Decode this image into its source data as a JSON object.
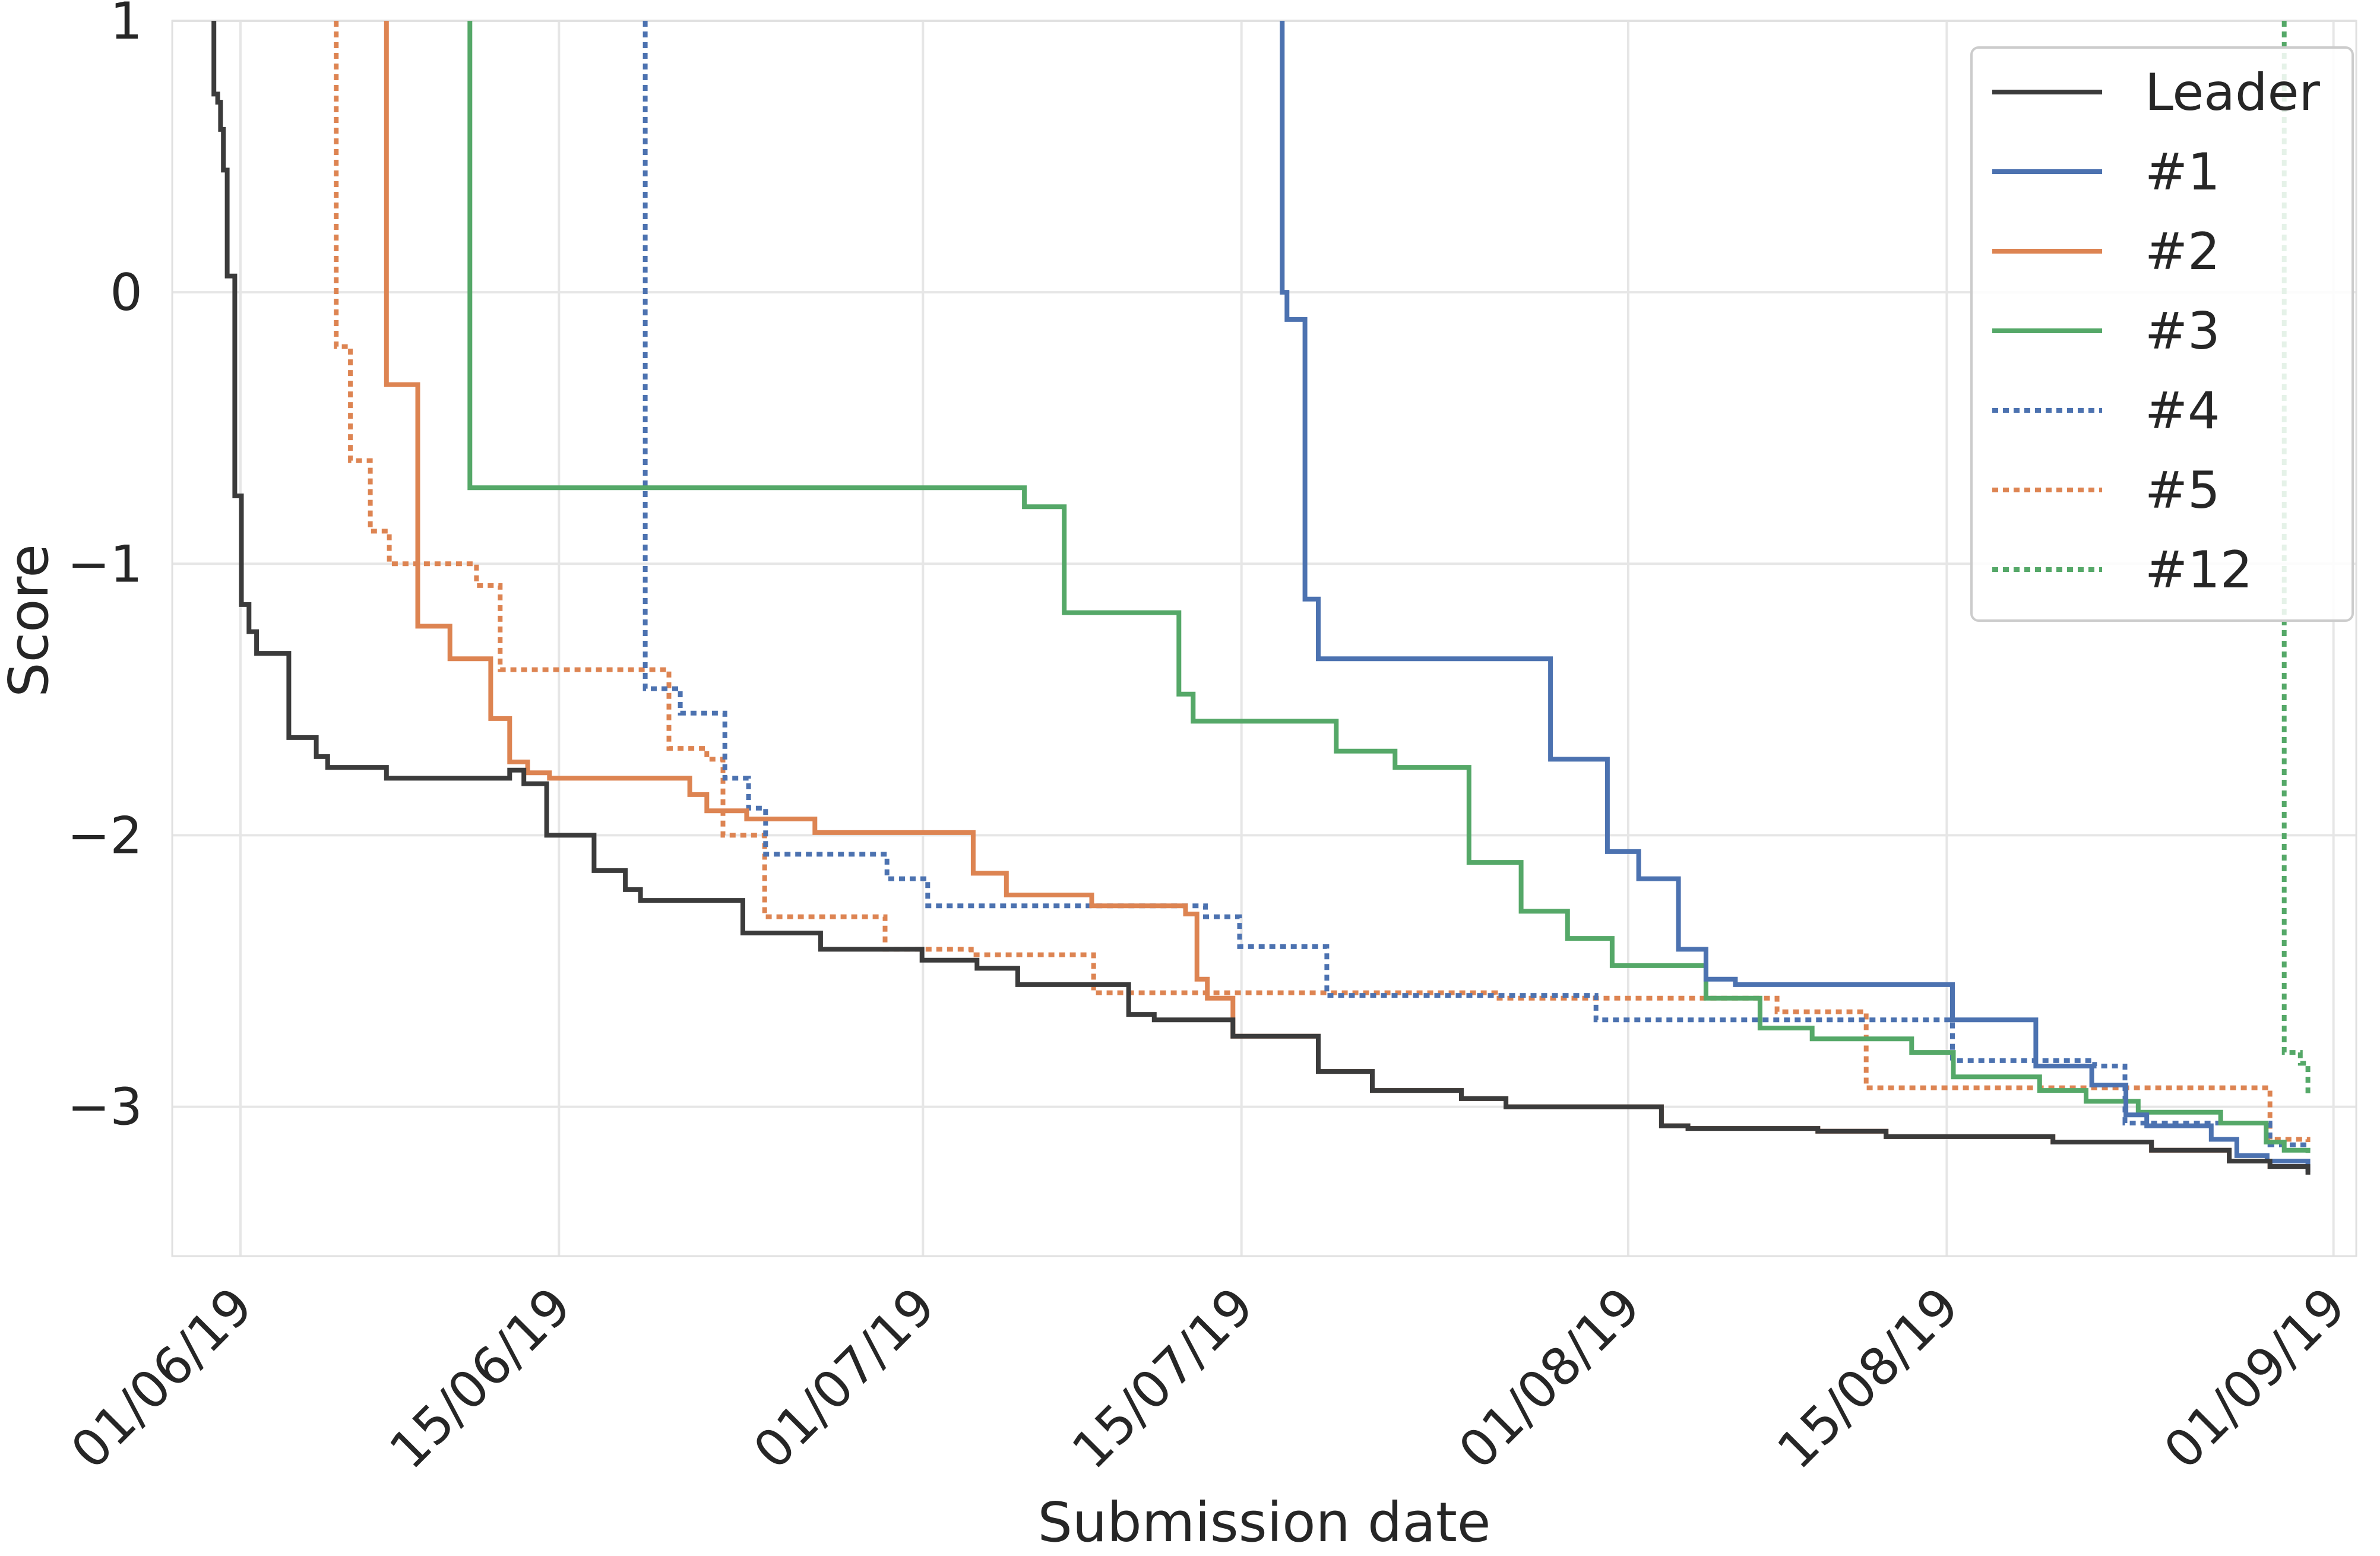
{
  "chart_data": {
    "type": "line",
    "xlabel": "Submission date",
    "ylabel": "Score",
    "ylim": [
      -3.55,
      1.0
    ],
    "xlim": [
      "2019-05-29",
      "2019-09-02"
    ],
    "grid": true,
    "legend_position": "top-right",
    "x_ticks": [
      {
        "date": "2019-06-01",
        "label": "01/06/19"
      },
      {
        "date": "2019-06-15",
        "label": "15/06/19"
      },
      {
        "date": "2019-07-01",
        "label": "01/07/19"
      },
      {
        "date": "2019-07-15",
        "label": "15/07/19"
      },
      {
        "date": "2019-08-01",
        "label": "01/08/19"
      },
      {
        "date": "2019-08-15",
        "label": "15/08/19"
      },
      {
        "date": "2019-09-01",
        "label": "01/09/19"
      }
    ],
    "y_ticks": [
      {
        "value": 1,
        "label": "1"
      },
      {
        "value": 0,
        "label": "0"
      },
      {
        "value": -1,
        "label": "−1"
      },
      {
        "value": -2,
        "label": "−2"
      },
      {
        "value": -3,
        "label": "−3"
      }
    ],
    "series": [
      {
        "name": "Leader",
        "color": "#3b3b3b",
        "style": "solid",
        "points": [
          [
            "2019-05-30 20:00",
            1.0
          ],
          [
            "2019-05-30 20:00",
            0.73
          ],
          [
            "2019-05-31 00:00",
            0.7
          ],
          [
            "2019-05-31 03:00",
            0.6
          ],
          [
            "2019-05-31 06:00",
            0.45
          ],
          [
            "2019-05-31 10:00",
            0.06
          ],
          [
            "2019-05-31 18:00",
            -0.75
          ],
          [
            "2019-06-01 01:00",
            -1.15
          ],
          [
            "2019-06-01 09:00",
            -1.25
          ],
          [
            "2019-06-01 17:00",
            -1.33
          ],
          [
            "2019-06-03 03:00",
            -1.64
          ],
          [
            "2019-06-04 08:00",
            -1.71
          ],
          [
            "2019-06-04 20:00",
            -1.75
          ],
          [
            "2019-06-07 10:00",
            -1.79
          ],
          [
            "2019-06-12 20:00",
            -1.76
          ],
          [
            "2019-06-13 11:00",
            -1.81
          ],
          [
            "2019-06-14 11:00",
            -2.0
          ],
          [
            "2019-06-16 13:00",
            -2.13
          ],
          [
            "2019-06-17 22:00",
            -2.2
          ],
          [
            "2019-06-18 14:00",
            -2.24
          ],
          [
            "2019-06-23 02:00",
            -2.36
          ],
          [
            "2019-06-26 12:00",
            -2.42
          ],
          [
            "2019-06-30 23:00",
            -2.46
          ],
          [
            "2019-07-03 09:00",
            -2.49
          ],
          [
            "2019-07-05 04:00",
            -2.55
          ],
          [
            "2019-07-10 01:00",
            -2.66
          ],
          [
            "2019-07-11 04:00",
            -2.68
          ],
          [
            "2019-07-14 15:00",
            -2.74
          ],
          [
            "2019-07-18 09:00",
            -2.87
          ],
          [
            "2019-07-20 18:00",
            -2.94
          ],
          [
            "2019-07-24 16:00",
            -2.97
          ],
          [
            "2019-07-26 15:00",
            -3.0
          ],
          [
            "2019-08-02 11:00",
            -3.07
          ],
          [
            "2019-08-03 15:00",
            -3.08
          ],
          [
            "2019-08-09 08:00",
            -3.09
          ],
          [
            "2019-08-12 08:00",
            -3.11
          ],
          [
            "2019-08-19 16:00",
            -3.13
          ],
          [
            "2019-08-24 00:00",
            -3.16
          ],
          [
            "2019-08-27 10:00",
            -3.2
          ],
          [
            "2019-08-29 05:00",
            -3.22
          ],
          [
            "2019-08-30 21:00",
            -3.25
          ]
        ]
      },
      {
        "name": "#1",
        "color": "#4c72b0",
        "style": "solid",
        "points": [
          [
            "2019-07-16 19:00",
            1.0
          ],
          [
            "2019-07-16 19:00",
            0.0
          ],
          [
            "2019-07-17 00:00",
            -0.1
          ],
          [
            "2019-07-17 19:00",
            -1.13
          ],
          [
            "2019-07-18 09:00",
            -1.35
          ],
          [
            "2019-07-28 14:00",
            -1.72
          ],
          [
            "2019-07-31 02:00",
            -2.06
          ],
          [
            "2019-08-01 11:00",
            -2.16
          ],
          [
            "2019-08-03 05:00",
            -2.42
          ],
          [
            "2019-08-04 10:00",
            -2.53
          ],
          [
            "2019-08-05 17:00",
            -2.55
          ],
          [
            "2019-08-15 06:00",
            -2.68
          ],
          [
            "2019-08-18 22:00",
            -2.85
          ],
          [
            "2019-08-21 09:00",
            -2.92
          ],
          [
            "2019-08-22 21:00",
            -3.03
          ],
          [
            "2019-08-23 19:00",
            -3.07
          ],
          [
            "2019-08-26 15:00",
            -3.12
          ],
          [
            "2019-08-27 18:00",
            -3.18
          ],
          [
            "2019-08-29 02:00",
            -3.2
          ],
          [
            "2019-08-30 21:00",
            -3.24
          ]
        ]
      },
      {
        "name": "#2",
        "color": "#dd8452",
        "style": "solid",
        "points": [
          [
            "2019-06-07 10:00",
            1.0
          ],
          [
            "2019-06-07 10:00",
            -0.34
          ],
          [
            "2019-06-08 19:00",
            -1.23
          ],
          [
            "2019-06-10 05:00",
            -1.35
          ],
          [
            "2019-06-12 00:00",
            -1.57
          ],
          [
            "2019-06-12 20:00",
            -1.73
          ],
          [
            "2019-06-13 15:00",
            -1.77
          ],
          [
            "2019-06-14 14:00",
            -1.79
          ],
          [
            "2019-06-20 18:00",
            -1.85
          ],
          [
            "2019-06-21 12:00",
            -1.91
          ],
          [
            "2019-06-23 06:00",
            -1.94
          ],
          [
            "2019-06-26 06:00",
            -1.99
          ],
          [
            "2019-07-03 05:00",
            -2.14
          ],
          [
            "2019-07-04 16:00",
            -2.22
          ],
          [
            "2019-07-08 10:00",
            -2.26
          ],
          [
            "2019-07-12 13:00",
            -2.29
          ],
          [
            "2019-07-13 01:00",
            -2.53
          ],
          [
            "2019-07-13 12:00",
            -2.6
          ],
          [
            "2019-07-14 15:00",
            -2.74
          ],
          [
            "2019-07-18 09:00",
            -2.87
          ],
          [
            "2019-07-20 18:00",
            -2.94
          ],
          [
            "2019-07-24 16:00",
            -2.97
          ],
          [
            "2019-07-26 15:00",
            -3.0
          ],
          [
            "2019-08-02 11:00",
            -3.07
          ],
          [
            "2019-08-03 15:00",
            -3.08
          ],
          [
            "2019-08-09 08:00",
            -3.09
          ],
          [
            "2019-08-12 08:00",
            -3.11
          ],
          [
            "2019-08-19 16:00",
            -3.13
          ],
          [
            "2019-08-24 00:00",
            -3.16
          ],
          [
            "2019-08-27 10:00",
            -3.2
          ],
          [
            "2019-08-29 05:00",
            -3.22
          ],
          [
            "2019-08-30 21:00",
            -3.22
          ]
        ]
      },
      {
        "name": "#3",
        "color": "#55a868",
        "style": "solid",
        "points": [
          [
            "2019-06-11 02:00",
            1.0
          ],
          [
            "2019-06-11 02:00",
            -0.72
          ],
          [
            "2019-07-05 11:00",
            -0.79
          ],
          [
            "2019-07-07 05:00",
            -1.18
          ],
          [
            "2019-07-12 06:00",
            -1.48
          ],
          [
            "2019-07-12 21:00",
            -1.58
          ],
          [
            "2019-07-19 04:00",
            -1.69
          ],
          [
            "2019-07-21 18:00",
            -1.75
          ],
          [
            "2019-07-25 00:00",
            -2.1
          ],
          [
            "2019-07-27 07:00",
            -2.28
          ],
          [
            "2019-07-29 08:00",
            -2.38
          ],
          [
            "2019-07-31 07:00",
            -2.48
          ],
          [
            "2019-08-04 10:00",
            -2.6
          ],
          [
            "2019-08-06 19:00",
            -2.71
          ],
          [
            "2019-08-09 02:00",
            -2.75
          ],
          [
            "2019-08-13 11:00",
            -2.8
          ],
          [
            "2019-08-15 07:00",
            -2.89
          ],
          [
            "2019-08-19 02:00",
            -2.94
          ],
          [
            "2019-08-21 03:00",
            -2.98
          ],
          [
            "2019-08-23 10:00",
            -3.02
          ],
          [
            "2019-08-27 01:00",
            -3.06
          ],
          [
            "2019-08-29 01:00",
            -3.13
          ],
          [
            "2019-08-29 20:00",
            -3.16
          ],
          [
            "2019-08-30 21:00",
            -3.17
          ]
        ]
      },
      {
        "name": "#4",
        "color": "#4c72b0",
        "style": "dotted",
        "points": [
          [
            "2019-06-18 19:00",
            1.0
          ],
          [
            "2019-06-18 19:00",
            -1.46
          ],
          [
            "2019-06-20 08:00",
            -1.55
          ],
          [
            "2019-06-22 07:00",
            -1.79
          ],
          [
            "2019-06-23 08:00",
            -1.9
          ],
          [
            "2019-06-24 02:00",
            -2.07
          ],
          [
            "2019-06-29 10:00",
            -2.16
          ],
          [
            "2019-07-01 05:00",
            -2.26
          ],
          [
            "2019-07-13 10:00",
            -2.3
          ],
          [
            "2019-07-14 22:00",
            -2.41
          ],
          [
            "2019-07-18 18:00",
            -2.59
          ],
          [
            "2019-07-30 14:00",
            -2.68
          ],
          [
            "2019-08-15 06:00",
            -2.83
          ],
          [
            "2019-08-21 12:00",
            -2.85
          ],
          [
            "2019-08-22 20:00",
            -3.06
          ],
          [
            "2019-08-29 05:00",
            -3.14
          ],
          [
            "2019-08-30 21:00",
            -3.16
          ]
        ]
      },
      {
        "name": "#5",
        "color": "#dd8452",
        "style": "dotted",
        "points": [
          [
            "2019-06-05 05:00",
            1.0
          ],
          [
            "2019-06-05 05:00",
            -0.2
          ],
          [
            "2019-06-05 20:00",
            -0.62
          ],
          [
            "2019-06-06 17:00",
            -0.88
          ],
          [
            "2019-06-07 13:00",
            -1.0
          ],
          [
            "2019-06-11 09:00",
            -1.08
          ],
          [
            "2019-06-12 10:00",
            -1.39
          ],
          [
            "2019-06-19 20:00",
            -1.68
          ],
          [
            "2019-06-21 12:00",
            -1.72
          ],
          [
            "2019-06-22 05:00",
            -2.0
          ],
          [
            "2019-06-24 01:00",
            -2.3
          ],
          [
            "2019-06-29 08:00",
            -2.42
          ],
          [
            "2019-07-03 03:00",
            -2.44
          ],
          [
            "2019-07-08 12:00",
            -2.58
          ],
          [
            "2019-07-26 04:00",
            -2.6
          ],
          [
            "2019-08-07 13:00",
            -2.65
          ],
          [
            "2019-08-11 11:00",
            -2.93
          ],
          [
            "2019-08-29 05:00",
            -3.12
          ],
          [
            "2019-08-30 21:00",
            -3.13
          ]
        ]
      },
      {
        "name": "#12",
        "color": "#55a868",
        "style": "dotted",
        "points": [
          [
            "2019-08-29 20:00",
            1.0
          ],
          [
            "2019-08-29 20:00",
            -2.8
          ],
          [
            "2019-08-30 13:00",
            -2.84
          ],
          [
            "2019-08-30 21:00",
            -2.95
          ]
        ]
      }
    ]
  }
}
